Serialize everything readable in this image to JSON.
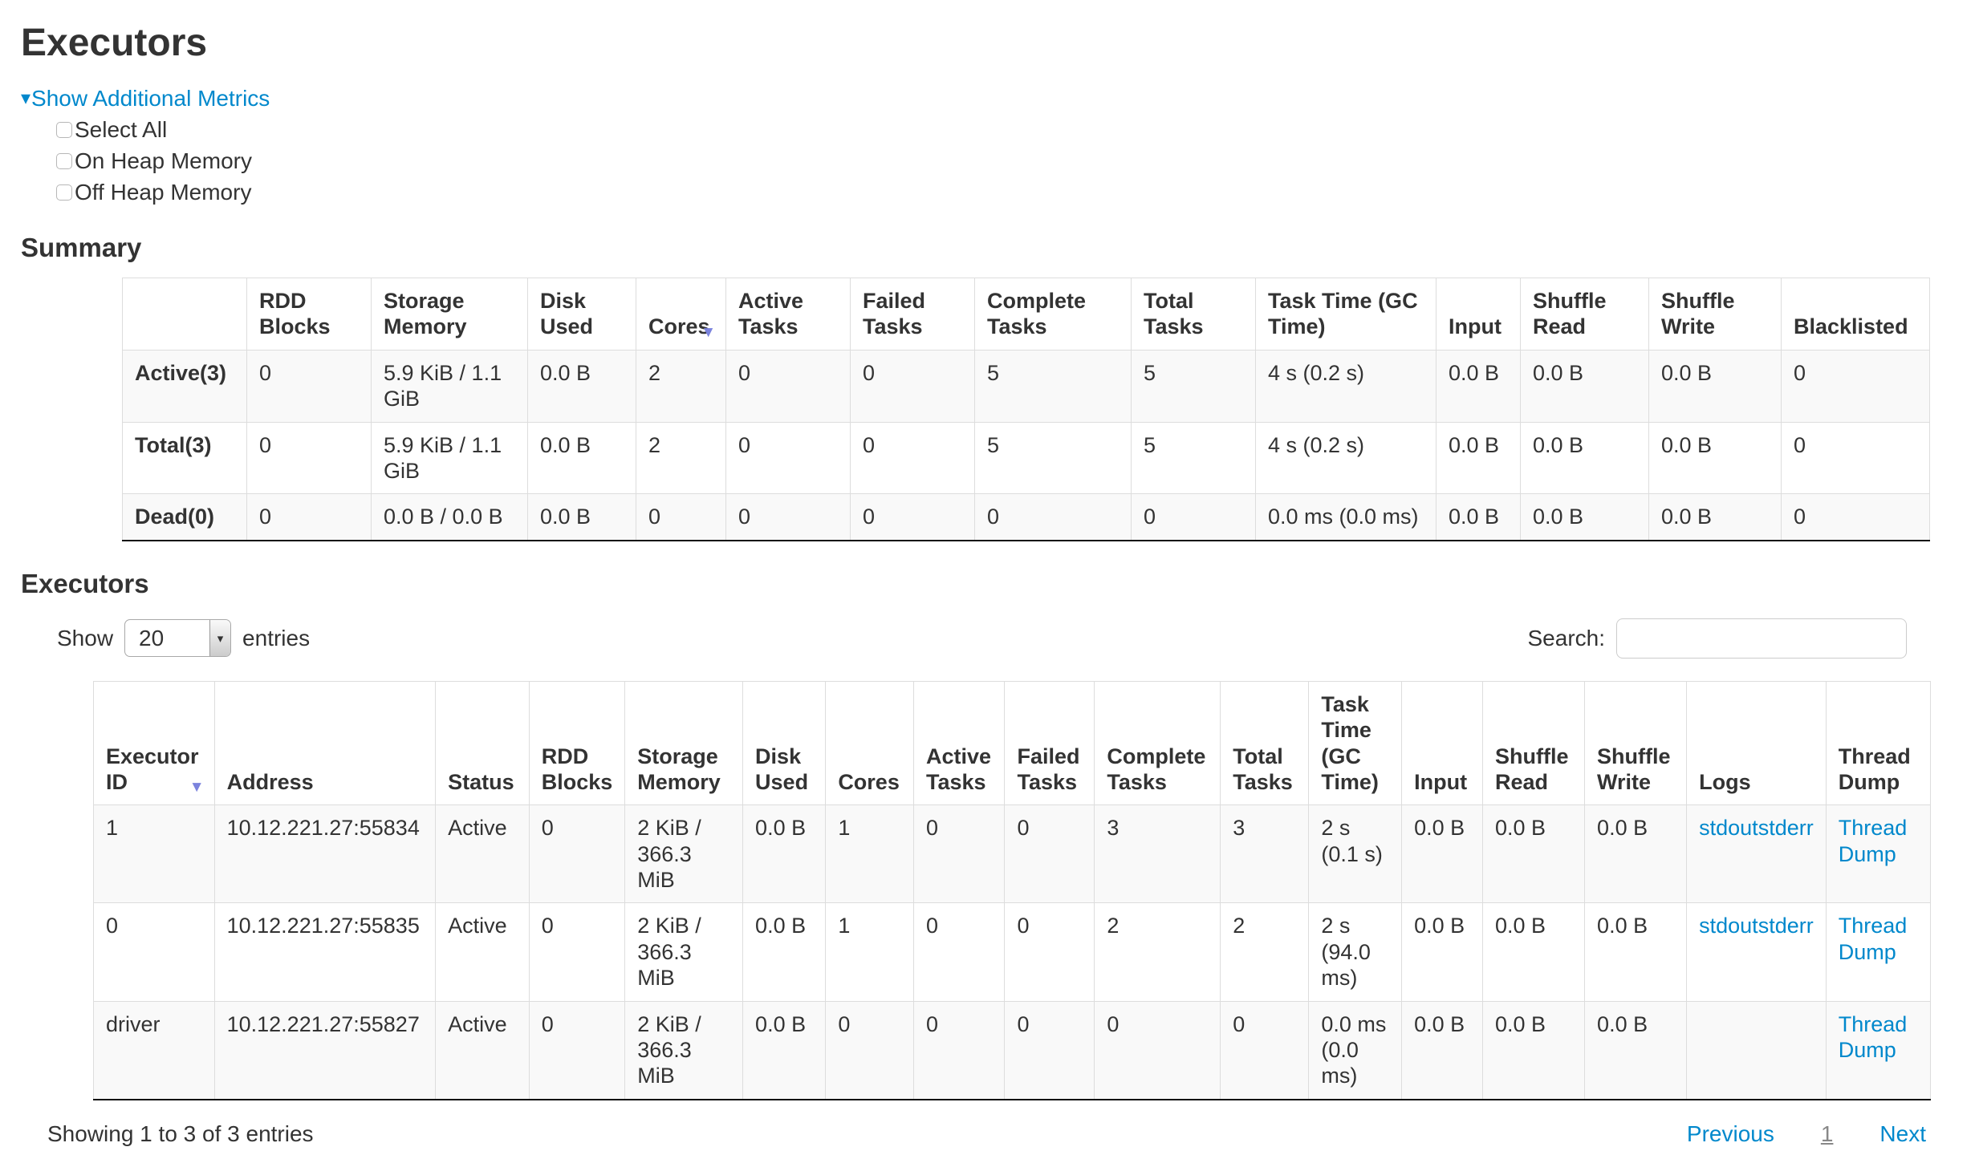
{
  "page": {
    "title": "Executors"
  },
  "icons": {
    "caret_down": "▾",
    "sort_desc": "▼",
    "select_arrow": "▾"
  },
  "metrics_toggle": {
    "label": "Show Additional Metrics",
    "items": [
      "Select All",
      "On Heap Memory",
      "Off Heap Memory"
    ]
  },
  "summary": {
    "heading": "Summary",
    "columns": [
      "",
      "RDD Blocks",
      "Storage Memory",
      "Disk Used",
      "Cores",
      "Active Tasks",
      "Failed Tasks",
      "Complete Tasks",
      "Total Tasks",
      "Task Time (GC Time)",
      "Input",
      "Shuffle Read",
      "Shuffle Write",
      "Blacklisted"
    ],
    "sorted_column": "Cores",
    "rows": [
      {
        "label": "Active(3)",
        "values": [
          "0",
          "5.9 KiB / 1.1 GiB",
          "0.0 B",
          "2",
          "0",
          "0",
          "5",
          "5",
          "4 s (0.2 s)",
          "0.0 B",
          "0.0 B",
          "0.0 B",
          "0"
        ]
      },
      {
        "label": "Total(3)",
        "values": [
          "0",
          "5.9 KiB / 1.1 GiB",
          "0.0 B",
          "2",
          "0",
          "0",
          "5",
          "5",
          "4 s (0.2 s)",
          "0.0 B",
          "0.0 B",
          "0.0 B",
          "0"
        ]
      },
      {
        "label": "Dead(0)",
        "values": [
          "0",
          "0.0 B / 0.0 B",
          "0.0 B",
          "0",
          "0",
          "0",
          "0",
          "0",
          "0.0 ms (0.0 ms)",
          "0.0 B",
          "0.0 B",
          "0.0 B",
          "0"
        ]
      }
    ]
  },
  "executors": {
    "heading": "Executors",
    "show_label": "Show",
    "entries_value": "20",
    "entries_label": "entries",
    "search_label": "Search:",
    "search_value": "",
    "columns": [
      "Executor ID",
      "Address",
      "Status",
      "RDD Blocks",
      "Storage Memory",
      "Disk Used",
      "Cores",
      "Active Tasks",
      "Failed Tasks",
      "Complete Tasks",
      "Total Tasks",
      "Task Time (GC Time)",
      "Input",
      "Shuffle Read",
      "Shuffle Write",
      "Logs",
      "Thread Dump"
    ],
    "sorted_column": "Executor ID",
    "rows": [
      {
        "executor_id": "1",
        "address": "10.12.221.27:55834",
        "status": "Active",
        "rdd_blocks": "0",
        "storage_memory": "2 KiB / 366.3 MiB",
        "disk_used": "0.0 B",
        "cores": "1",
        "active_tasks": "0",
        "failed_tasks": "0",
        "complete_tasks": "3",
        "total_tasks": "3",
        "task_time": "2 s (0.1 s)",
        "input": "0.0 B",
        "shuffle_read": "0.0 B",
        "shuffle_write": "0.0 B",
        "logs": [
          "stdout",
          "stderr"
        ],
        "thread_dump": "Thread Dump"
      },
      {
        "executor_id": "0",
        "address": "10.12.221.27:55835",
        "status": "Active",
        "rdd_blocks": "0",
        "storage_memory": "2 KiB / 366.3 MiB",
        "disk_used": "0.0 B",
        "cores": "1",
        "active_tasks": "0",
        "failed_tasks": "0",
        "complete_tasks": "2",
        "total_tasks": "2",
        "task_time": "2 s (94.0 ms)",
        "input": "0.0 B",
        "shuffle_read": "0.0 B",
        "shuffle_write": "0.0 B",
        "logs": [
          "stdout",
          "stderr"
        ],
        "thread_dump": "Thread Dump"
      },
      {
        "executor_id": "driver",
        "address": "10.12.221.27:55827",
        "status": "Active",
        "rdd_blocks": "0",
        "storage_memory": "2 KiB / 366.3 MiB",
        "disk_used": "0.0 B",
        "cores": "0",
        "active_tasks": "0",
        "failed_tasks": "0",
        "complete_tasks": "0",
        "total_tasks": "0",
        "task_time": "0.0 ms (0.0 ms)",
        "input": "0.0 B",
        "shuffle_read": "0.0 B",
        "shuffle_write": "0.0 B",
        "logs": [],
        "thread_dump": "Thread Dump"
      }
    ],
    "footer": {
      "showing": "Showing 1 to 3 of 3 entries",
      "previous": "Previous",
      "page": "1",
      "next": "Next"
    }
  },
  "colors": {
    "link": "#0088cc",
    "sort_arrow": "#7b83dd",
    "text": "#333333",
    "border": "#dddddd",
    "stripe": "#f9f9f9",
    "dark_border": "#111111"
  }
}
